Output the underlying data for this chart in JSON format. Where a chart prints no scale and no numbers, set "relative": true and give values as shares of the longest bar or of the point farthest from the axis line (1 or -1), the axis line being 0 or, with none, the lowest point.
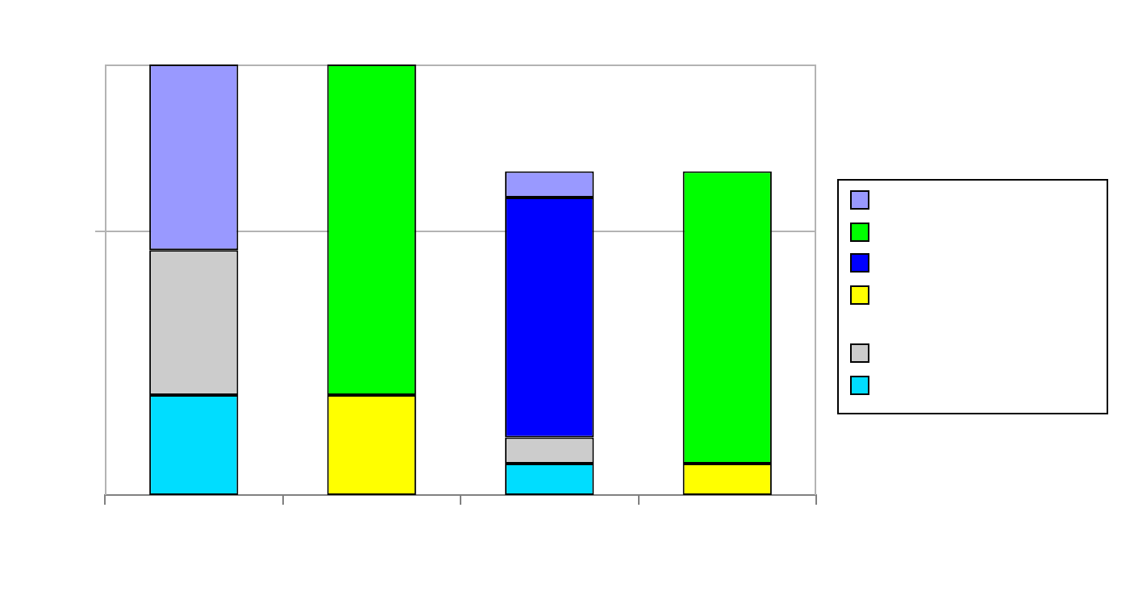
{
  "chart_data": {
    "type": "bar",
    "stacked": true,
    "relative": true,
    "categories": [
      null,
      null,
      null,
      null
    ],
    "series": [
      {
        "color": "#00ddff",
        "values": [
          0.232,
          null,
          0.073,
          null
        ]
      },
      {
        "color": "#cccccc",
        "values": [
          0.337,
          null,
          0.061,
          null
        ]
      },
      {
        "color": "#ffff00",
        "values": [
          null,
          0.232,
          null,
          0.073
        ]
      },
      {
        "color": "#0000ff",
        "values": [
          null,
          null,
          0.557,
          null
        ]
      },
      {
        "color": "#00ff00",
        "values": [
          null,
          0.768,
          null,
          0.679
        ]
      },
      {
        "color": "#9999ff",
        "values": [
          0.431,
          null,
          0.061,
          null
        ]
      }
    ],
    "ref_lines": [
      {
        "axis": "y",
        "value": 0.614,
        "color": "#b3b3b3"
      }
    ]
  }
}
